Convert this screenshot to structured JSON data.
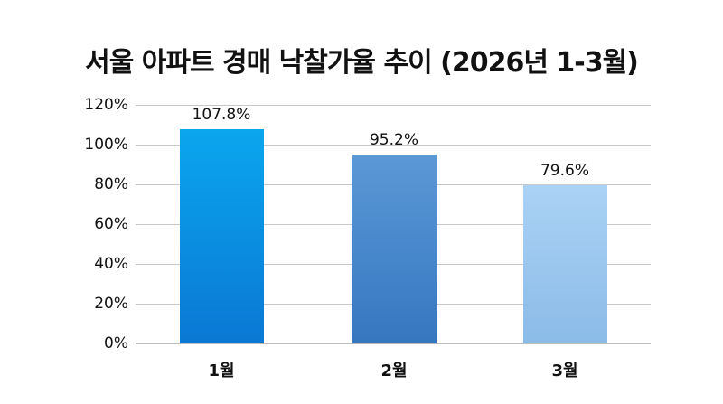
{
  "title": "서울 아파트 경매 낙찰가율 추이 (2026년 1-3월)",
  "chart_data": {
    "type": "bar",
    "title": "서울 아파트 경매 낙찰가율 추이 (2026년 1-3월)",
    "categories": [
      "1월",
      "2월",
      "3월"
    ],
    "values": [
      107.8,
      95.2,
      79.6
    ],
    "value_labels": [
      "107.8%",
      "95.2%",
      "79.6%"
    ],
    "xlabel": "",
    "ylabel": "",
    "ylim": [
      0,
      120
    ],
    "yticks": [
      "0%",
      "20%",
      "40%",
      "60%",
      "80%",
      "100%",
      "120%"
    ],
    "grid": true,
    "legend": "none",
    "bar_colors": [
      {
        "top": "#0aa6ee",
        "bottom": "#0a78d4"
      },
      {
        "top": "#5b98d6",
        "bottom": "#3577c0"
      },
      {
        "top": "#abd2f5",
        "bottom": "#8bbbe8"
      }
    ]
  }
}
